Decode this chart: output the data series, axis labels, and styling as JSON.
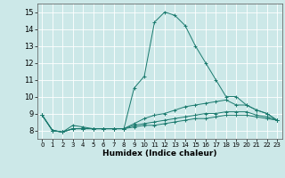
{
  "title": "",
  "xlabel": "Humidex (Indice chaleur)",
  "bg_color": "#cce8e8",
  "grid_color": "#ffffff",
  "line_color": "#1a7a6e",
  "xlim": [
    -0.5,
    23.5
  ],
  "ylim": [
    7.5,
    15.5
  ],
  "xticks": [
    0,
    1,
    2,
    3,
    4,
    5,
    6,
    7,
    8,
    9,
    10,
    11,
    12,
    13,
    14,
    15,
    16,
    17,
    18,
    19,
    20,
    21,
    22,
    23
  ],
  "yticks": [
    8,
    9,
    10,
    11,
    12,
    13,
    14,
    15
  ],
  "lines": [
    {
      "x": [
        0,
        1,
        2,
        3,
        4,
        5,
        6,
        7,
        8,
        9,
        10,
        11,
        12,
        13,
        14,
        15,
        16,
        17,
        18,
        19,
        20,
        21,
        22,
        23
      ],
      "y": [
        8.9,
        8.0,
        7.9,
        8.3,
        8.2,
        8.1,
        8.1,
        8.1,
        8.1,
        10.5,
        11.2,
        14.4,
        15.0,
        14.8,
        14.2,
        13.0,
        12.0,
        11.0,
        10.0,
        10.0,
        9.5,
        9.2,
        9.0,
        8.6
      ]
    },
    {
      "x": [
        0,
        1,
        2,
        3,
        4,
        5,
        6,
        7,
        8,
        9,
        10,
        11,
        12,
        13,
        14,
        15,
        16,
        17,
        18,
        19,
        20,
        21,
        22,
        23
      ],
      "y": [
        8.9,
        8.0,
        7.9,
        8.1,
        8.1,
        8.1,
        8.1,
        8.1,
        8.1,
        8.4,
        8.7,
        8.9,
        9.0,
        9.2,
        9.4,
        9.5,
        9.6,
        9.7,
        9.8,
        9.5,
        9.5,
        9.2,
        9.0,
        8.6
      ]
    },
    {
      "x": [
        0,
        1,
        2,
        3,
        4,
        5,
        6,
        7,
        8,
        9,
        10,
        11,
        12,
        13,
        14,
        15,
        16,
        17,
        18,
        19,
        20,
        21,
        22,
        23
      ],
      "y": [
        8.9,
        8.0,
        7.9,
        8.1,
        8.1,
        8.1,
        8.1,
        8.1,
        8.1,
        8.3,
        8.4,
        8.5,
        8.6,
        8.7,
        8.8,
        8.9,
        9.0,
        9.0,
        9.1,
        9.1,
        9.1,
        8.9,
        8.8,
        8.6
      ]
    },
    {
      "x": [
        0,
        1,
        2,
        3,
        4,
        5,
        6,
        7,
        8,
        9,
        10,
        11,
        12,
        13,
        14,
        15,
        16,
        17,
        18,
        19,
        20,
        21,
        22,
        23
      ],
      "y": [
        8.9,
        8.0,
        7.9,
        8.1,
        8.1,
        8.1,
        8.1,
        8.1,
        8.1,
        8.2,
        8.3,
        8.3,
        8.4,
        8.5,
        8.6,
        8.7,
        8.7,
        8.8,
        8.9,
        8.9,
        8.9,
        8.8,
        8.7,
        8.6
      ]
    }
  ]
}
